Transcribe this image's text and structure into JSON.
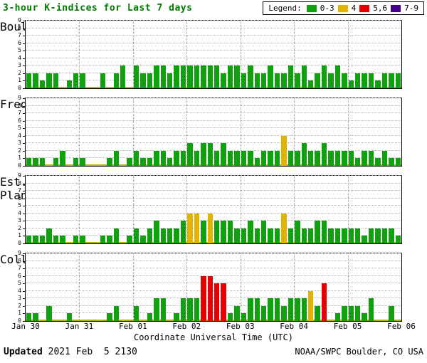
{
  "header": {
    "title": "3-hour K-indices for Last 7 days",
    "title_color": "#007a00",
    "legend_label": "Legend:",
    "legend": [
      {
        "label": "0-3",
        "color": "#10a010"
      },
      {
        "label": "4",
        "color": "#e0b400"
      },
      {
        "label": "5,6",
        "color": "#e60000"
      },
      {
        "label": "7-9",
        "color": "#46008c"
      }
    ]
  },
  "axes": {
    "x_ticks": [
      "Jan 30",
      "Jan 31",
      "Feb 01",
      "Feb 02",
      "Feb 03",
      "Feb 04",
      "Feb 05",
      "Feb 06"
    ],
    "x_label": "Coordinate Universal Time (UTC)",
    "y_ticks": [
      "0",
      "1",
      "2",
      "3",
      "4",
      "5",
      "6",
      "7",
      "8",
      "9"
    ]
  },
  "chart_data": {
    "type": "bar",
    "description": "3-hour K-index bars, 8 bars per day over 7 days per station",
    "bars_per_day": 8,
    "days": [
      "Jan 30",
      "Jan 31",
      "Feb 01",
      "Feb 02",
      "Feb 03",
      "Feb 04",
      "Feb 05"
    ],
    "ylim": [
      0,
      9
    ],
    "colors": {
      "k0_3": "#10a010",
      "k4": "#e0b400",
      "k5_6": "#e60000",
      "k7_9": "#46008c"
    },
    "baseline_color": "#b4b400",
    "series": [
      {
        "name": "Boulder",
        "values": [
          2,
          2,
          1,
          2,
          2,
          0,
          1,
          2,
          2,
          0,
          0,
          2,
          0,
          2,
          3,
          0,
          3,
          2,
          2,
          3,
          3,
          2,
          3,
          3,
          3,
          3,
          3,
          3,
          3,
          2,
          3,
          3,
          2,
          3,
          2,
          2,
          3,
          2,
          2,
          3,
          2,
          3,
          1,
          2,
          3,
          2,
          3,
          2,
          1,
          2,
          2,
          2,
          1,
          2,
          2,
          2
        ]
      },
      {
        "name": "Fredericksburg",
        "values": [
          1,
          1,
          1,
          0,
          1,
          2,
          0,
          1,
          1,
          0,
          0,
          0,
          1,
          2,
          0,
          1,
          2,
          1,
          1,
          2,
          2,
          1,
          2,
          2,
          3,
          2,
          3,
          3,
          2,
          3,
          2,
          2,
          2,
          2,
          1,
          2,
          2,
          2,
          4,
          2,
          2,
          3,
          2,
          2,
          3,
          2,
          2,
          2,
          2,
          1,
          2,
          2,
          1,
          2,
          1,
          1
        ]
      },
      {
        "name": "Est. Planetary",
        "values": [
          1,
          1,
          1,
          2,
          1,
          1,
          0,
          1,
          1,
          0,
          0,
          1,
          1,
          2,
          0,
          1,
          2,
          1,
          2,
          3,
          2,
          2,
          2,
          3,
          4,
          4,
          3,
          4,
          3,
          3,
          3,
          2,
          2,
          3,
          2,
          3,
          2,
          2,
          4,
          2,
          3,
          2,
          2,
          3,
          3,
          2,
          2,
          2,
          2,
          2,
          1,
          2,
          2,
          2,
          2,
          1
        ]
      },
      {
        "name": "College",
        "values": [
          1,
          1,
          0,
          2,
          0,
          0,
          1,
          0,
          0,
          0,
          0,
          0,
          1,
          2,
          0,
          0,
          2,
          0,
          1,
          3,
          3,
          0,
          1,
          3,
          3,
          3,
          6,
          6,
          5,
          5,
          1,
          2,
          1,
          3,
          3,
          2,
          3,
          3,
          2,
          3,
          3,
          3,
          4,
          2,
          5,
          0,
          1,
          2,
          2,
          2,
          1,
          3,
          0,
          0,
          2,
          0
        ]
      }
    ]
  },
  "footer": {
    "updated_label": "Updated",
    "updated_value": " 2021 Feb  5 2130",
    "credit": "NOAA/SWPC Boulder, CO USA"
  }
}
